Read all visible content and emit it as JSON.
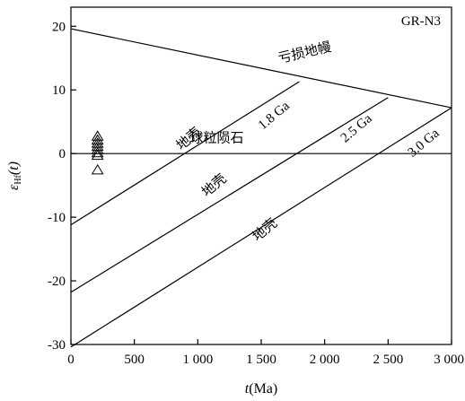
{
  "chart_data": {
    "type": "line",
    "panel_label": "GR-N3",
    "xlabel_main": "t",
    "xlabel_unit": "(Ma)",
    "ylabel_symbol": "ε",
    "ylabel_sub": "Hf",
    "ylabel_arg": "(t)",
    "xlim": [
      0,
      3000
    ],
    "ylim": [
      -30,
      23
    ],
    "x_ticks": [
      0,
      500,
      1000,
      1500,
      2000,
      2500,
      3000
    ],
    "x_tick_labels": [
      "0",
      "500",
      "1 000",
      "1 500",
      "2 000",
      "2 500",
      "3 000"
    ],
    "y_ticks": [
      20,
      10,
      0,
      -10,
      -20,
      -30
    ],
    "y_tick_labels": [
      "20",
      "10",
      "0",
      "-10",
      "-20",
      "-30"
    ],
    "lines": [
      {
        "name": "depleted-mantle",
        "x": [
          0,
          3000
        ],
        "y": [
          19.6,
          7.2
        ]
      },
      {
        "name": "chur",
        "x": [
          0,
          3000
        ],
        "y": [
          0,
          0
        ]
      },
      {
        "name": "crust-1.8",
        "x": [
          0,
          1800
        ],
        "y": [
          -11.2,
          11.3
        ]
      },
      {
        "name": "crust-2.5",
        "x": [
          0,
          2500
        ],
        "y": [
          -21.8,
          8.8
        ]
      },
      {
        "name": "crust-3.0",
        "x": [
          0,
          3000
        ],
        "y": [
          -30.4,
          7.2
        ]
      }
    ],
    "annotations": [
      {
        "text": "亏损地幔",
        "x": 1850,
        "y": 15.2,
        "angle": -13
      },
      {
        "text": "1.8 Ga",
        "x": 1620,
        "y": 5.5,
        "angle": -40
      },
      {
        "text": "2.5 Ga",
        "x": 2270,
        "y": 3.5,
        "angle": -40
      },
      {
        "text": "3.0 Ga",
        "x": 2800,
        "y": 1.2,
        "angle": -40
      },
      {
        "text": "地壳",
        "x": 950,
        "y": 1.8,
        "angle": -40
      },
      {
        "text": "球粒陨石",
        "x": 1150,
        "y": 1.8,
        "angle": 0
      },
      {
        "text": "地壳",
        "x": 1150,
        "y": -5.5,
        "angle": -40
      },
      {
        "text": "地壳",
        "x": 1550,
        "y": -12.5,
        "angle": -40
      }
    ],
    "samples": {
      "marker": "open-triangle",
      "x": [
        210,
        210,
        210,
        210,
        210,
        210,
        210,
        210
      ],
      "y": [
        2.8,
        2.2,
        1.7,
        1.2,
        0.7,
        0.2,
        -0.2,
        -2.5
      ]
    }
  }
}
